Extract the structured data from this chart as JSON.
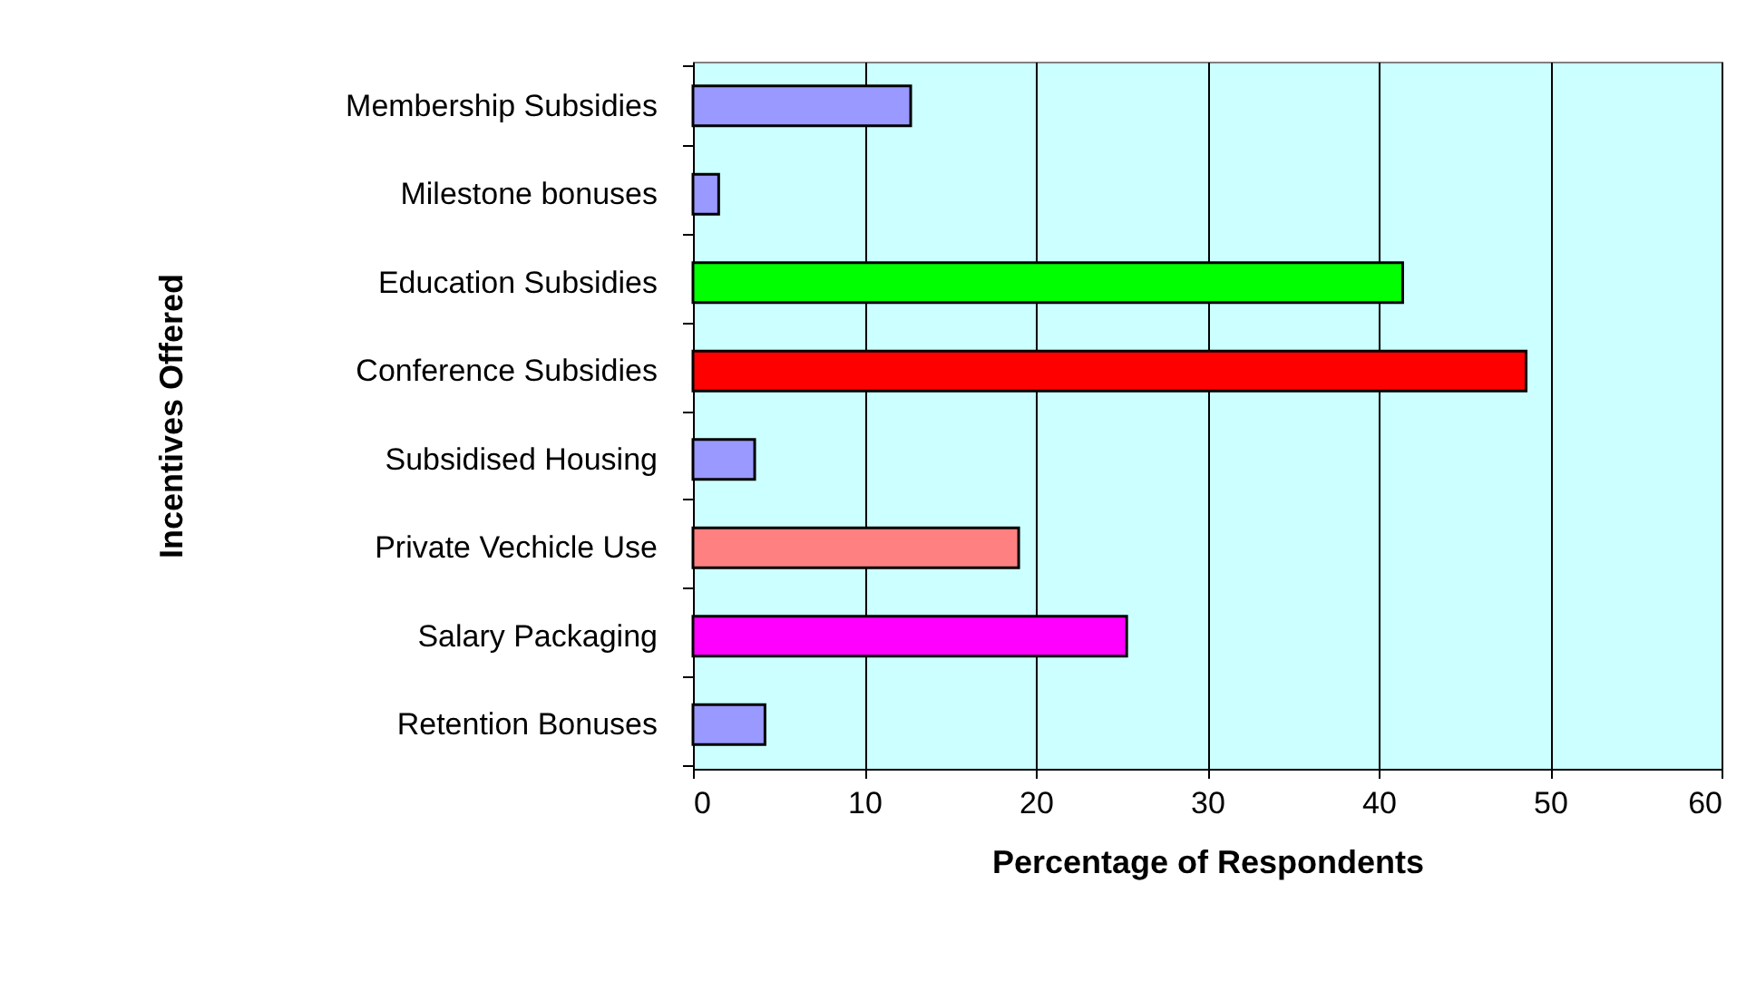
{
  "chart_data": {
    "type": "bar",
    "orientation": "horizontal",
    "xlabel": "Percentage of Respondents",
    "ylabel": "Incentives Offered",
    "categories": [
      "Membership Subsidies",
      "Milestone bonuses",
      "Education Subsidies",
      "Conference Subsidies",
      "Subsidised Housing",
      "Private Vechicle Use",
      "Salary Packaging",
      "Retention Bonuses"
    ],
    "values": [
      12.7,
      1.5,
      41.4,
      48.6,
      3.6,
      19.0,
      25.3,
      4.2
    ],
    "colors": [
      "#9999ff",
      "#9999ff",
      "#00ff00",
      "#ff0000",
      "#9999ff",
      "#ff8080",
      "#ff00ff",
      "#9999ff"
    ],
    "xlim": [
      0,
      60
    ],
    "xticks": [
      0,
      10,
      20,
      30,
      40,
      50,
      60
    ],
    "grid": "x"
  }
}
